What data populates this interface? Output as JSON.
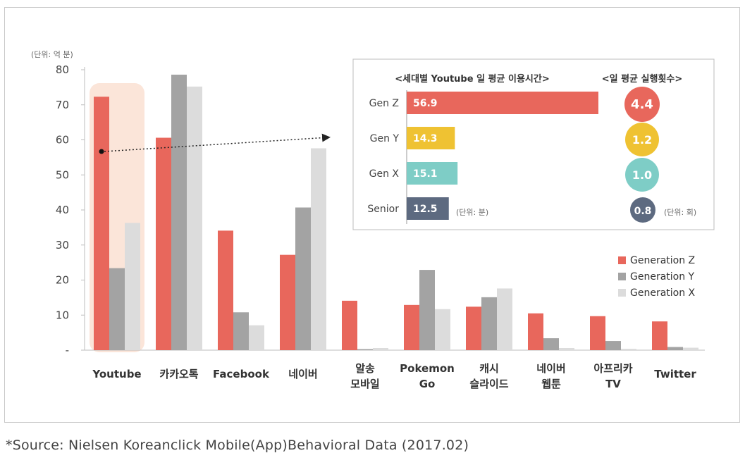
{
  "chart_data": [
    {
      "type": "bar",
      "unit_label": "(단위: 억 분)",
      "categories": [
        [
          "Youtube"
        ],
        [
          "카카오톡"
        ],
        [
          "Facebook"
        ],
        [
          "네이버"
        ],
        [
          "알송",
          "모바일"
        ],
        [
          "Pokemon",
          "Go"
        ],
        [
          "캐시",
          "슬라이드"
        ],
        [
          "네이버",
          "웹툰"
        ],
        [
          "아프리카",
          "TV"
        ],
        [
          "Twitter"
        ]
      ],
      "series": [
        {
          "name": "Generation Z",
          "color": "#e8675c",
          "values": [
            72.3,
            60.6,
            34.1,
            27.2,
            14.1,
            12.9,
            12.4,
            10.5,
            9.7,
            8.2
          ]
        },
        {
          "name": "Generation Y",
          "color": "#a3a3a3",
          "values": [
            23.4,
            78.6,
            10.8,
            40.7,
            0.3,
            22.9,
            15.1,
            3.4,
            2.6,
            0.9
          ]
        },
        {
          "name": "Generation X",
          "color": "#dcdcdc",
          "values": [
            36.3,
            75.2,
            7.1,
            57.6,
            0.6,
            11.7,
            17.6,
            0.6,
            0.4,
            0.7
          ]
        }
      ],
      "y_ticks": [
        "-",
        "10",
        "20",
        "30",
        "40",
        "50",
        "60",
        "70",
        "80"
      ],
      "ylim": [
        0,
        80
      ],
      "legend_position": "right-middle",
      "highlight_category": "Youtube"
    },
    {
      "type": "bar",
      "orientation": "horizontal",
      "title": "<세대별 Youtube 일 평균 이용시간>",
      "categories": [
        "Gen Z",
        "Gen Y",
        "Gen X",
        "Senior"
      ],
      "values": [
        56.9,
        14.3,
        15.1,
        12.5
      ],
      "value_labels": [
        "56.9",
        "14.3",
        "15.1",
        "12.5"
      ],
      "colors": [
        "#e8675c",
        "#efc232",
        "#7ecdc6",
        "#5d6a80"
      ],
      "unit_label": "(단위: 분)"
    },
    {
      "type": "bubble",
      "title": "<일 평균 실행횟수>",
      "categories": [
        "Gen Z",
        "Gen Y",
        "Gen X",
        "Senior"
      ],
      "values": [
        4.4,
        1.2,
        1.0,
        0.8
      ],
      "value_labels": [
        "4.4",
        "1.2",
        "1.0",
        "0.8"
      ],
      "colors": [
        "#e8675c",
        "#efc232",
        "#7ecdc6",
        "#5d6a80"
      ],
      "unit_label": "(단위: 회)"
    }
  ],
  "source": "*Source: Nielsen Koreanclick Mobile(App)Behavioral Data (2017.02)"
}
